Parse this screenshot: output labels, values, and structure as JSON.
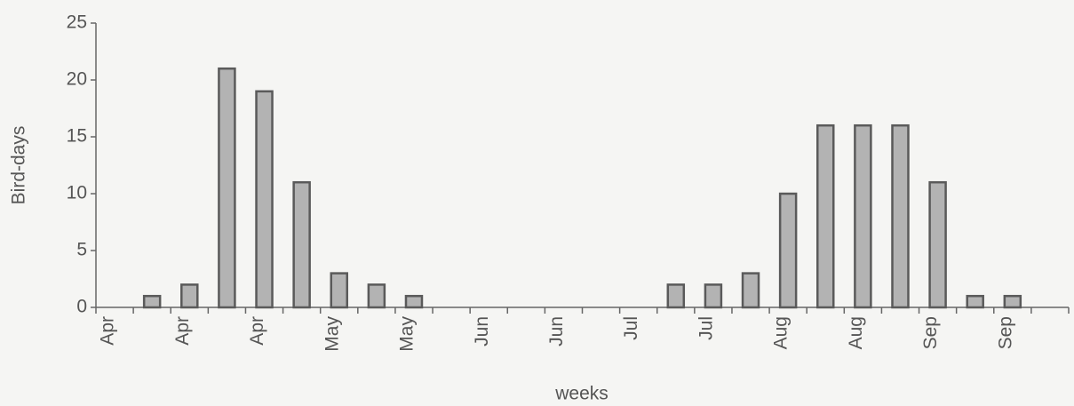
{
  "chart_data": {
    "type": "bar",
    "x_label": "weeks",
    "y_label": "Bird-days",
    "categories": [
      "Apr",
      null,
      "Apr",
      null,
      "Apr",
      null,
      "May",
      null,
      "May",
      null,
      "Jun",
      null,
      "Jun",
      null,
      "Jul",
      null,
      "Jul",
      null,
      "Aug",
      null,
      "Aug",
      null,
      "Sep",
      null,
      "Sep",
      null
    ],
    "values": [
      0,
      1,
      2,
      21,
      19,
      11,
      3,
      2,
      1,
      0,
      0,
      0,
      0,
      0,
      0,
      2,
      2,
      3,
      10,
      16,
      16,
      16,
      11,
      1,
      1,
      0
    ],
    "color": "#b3b3b3",
    "ylim": [
      0,
      25
    ],
    "yticks": [
      0,
      5,
      10,
      15,
      20,
      25
    ],
    "grid": false
  }
}
